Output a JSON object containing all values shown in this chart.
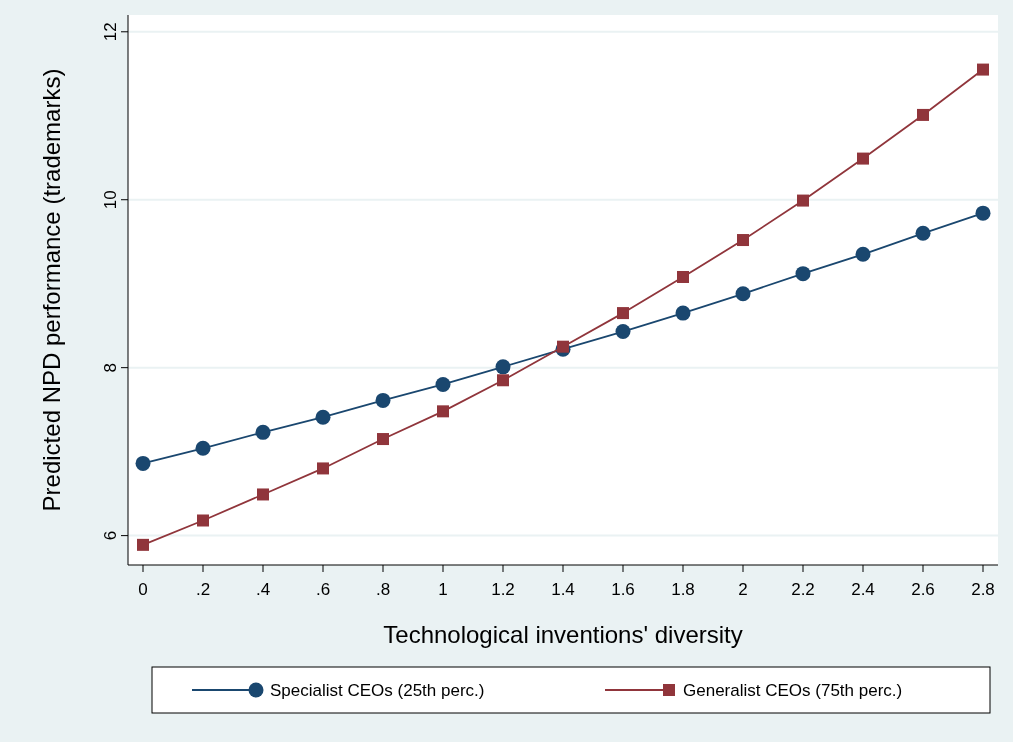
{
  "chart_data": {
    "type": "line",
    "xlabel": "Technological inventions' diversity",
    "ylabel": "Predicted NPD performance (trademarks)",
    "x": [
      0,
      0.2,
      0.4,
      0.6,
      0.8,
      1,
      1.2,
      1.4,
      1.6,
      1.8,
      2,
      2.2,
      2.4,
      2.6,
      2.8
    ],
    "series": [
      {
        "name": "Specialist CEOs (25th perc.)",
        "color": "#1a476f",
        "marker": "circle",
        "values": [
          6.86,
          7.04,
          7.23,
          7.41,
          7.61,
          7.8,
          8.01,
          8.22,
          8.43,
          8.65,
          8.88,
          9.12,
          9.35,
          9.6,
          9.84
        ]
      },
      {
        "name": "Generalist CEOs (75th perc.)",
        "color": "#90353b",
        "marker": "square",
        "values": [
          5.89,
          6.18,
          6.49,
          6.8,
          7.15,
          7.48,
          7.85,
          8.25,
          8.65,
          9.08,
          9.52,
          9.99,
          10.49,
          11.01,
          11.55
        ]
      }
    ],
    "xlim": [
      -0.05,
      2.85
    ],
    "ylim": [
      5.65,
      12.2
    ],
    "xticks": [
      0,
      {
        "value": 0.2,
        "label": ".2"
      },
      {
        "value": 0.4,
        "label": ".4"
      },
      {
        "value": 0.6,
        "label": ".6"
      },
      {
        "value": 0.8,
        "label": ".8"
      },
      1,
      1.2,
      1.4,
      1.6,
      1.8,
      2,
      2.2,
      2.4,
      2.6,
      2.8
    ],
    "yticks": [
      6,
      8,
      10,
      12
    ],
    "grid": "y",
    "legend": "bottom",
    "line_style": "solid"
  }
}
